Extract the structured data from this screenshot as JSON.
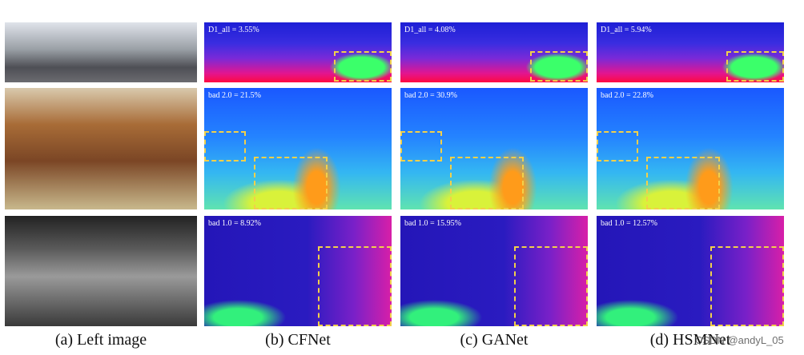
{
  "figure": {
    "rows": [
      {
        "metrics": [
          "D1_all = 3.55%",
          "D1_all = 4.08%",
          "D1_all = 5.94%"
        ]
      },
      {
        "metrics": [
          "bad 2.0 = 21.5%",
          "bad 2.0 = 30.9%",
          "bad 2.0 = 22.8%"
        ]
      },
      {
        "metrics": [
          "bad 1.0 = 8.92%",
          "bad 1.0 = 15.95%",
          "bad 1.0 = 12.57%"
        ]
      }
    ],
    "captions": [
      "(a) Left image",
      "(b) CFNet",
      "(c) GANet",
      "(d) HSMNet"
    ]
  },
  "watermark": "CSDN @andyL_05"
}
